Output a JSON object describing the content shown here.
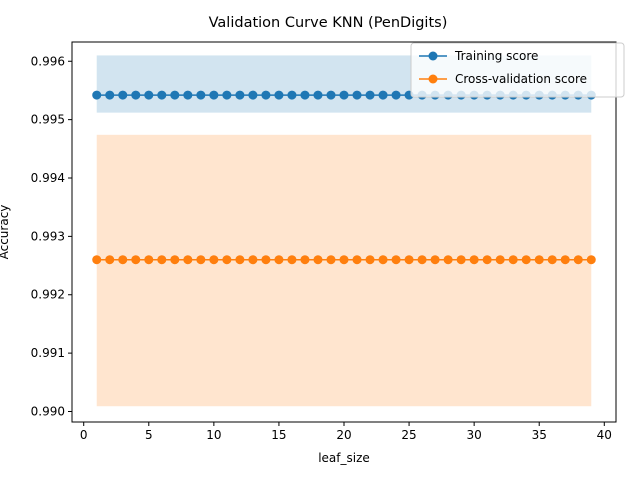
{
  "chart_data": {
    "type": "line",
    "title": "Validation Curve KNN (PenDigits)",
    "xlabel": "leaf_size",
    "ylabel": "Accuracy",
    "xlim": [
      -0.9,
      40.9
    ],
    "ylim": [
      0.98982,
      0.99633
    ],
    "xticks": [
      0,
      5,
      10,
      15,
      20,
      25,
      30,
      35,
      40
    ],
    "xtick_labels": [
      "0",
      "5",
      "10",
      "15",
      "20",
      "25",
      "30",
      "35",
      "40"
    ],
    "yticks": [
      0.99,
      0.991,
      0.992,
      0.993,
      0.994,
      0.995,
      0.996
    ],
    "ytick_labels": [
      "0.990",
      "0.991",
      "0.992",
      "0.993",
      "0.994",
      "0.995",
      "0.996"
    ],
    "x": [
      1,
      2,
      3,
      4,
      5,
      6,
      7,
      8,
      9,
      10,
      11,
      12,
      13,
      14,
      15,
      16,
      17,
      18,
      19,
      20,
      21,
      22,
      23,
      24,
      25,
      26,
      27,
      28,
      29,
      30,
      31,
      32,
      33,
      34,
      35,
      36,
      37,
      38,
      39
    ],
    "grid": false,
    "legend_position": "top-right",
    "series": [
      {
        "name": "Training score",
        "color": "#1f77b4",
        "marker": "circle",
        "value": 0.99542,
        "band": [
          0.99512,
          0.9961
        ]
      },
      {
        "name": "Cross-validation score",
        "color": "#ff7f0e",
        "marker": "circle",
        "value": 0.9926,
        "band": [
          0.99009,
          0.99474
        ]
      }
    ]
  }
}
